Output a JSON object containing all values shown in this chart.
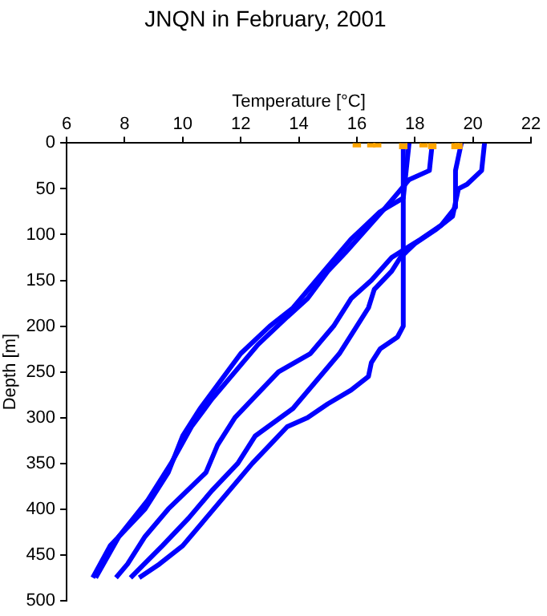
{
  "chart_data": {
    "type": "line",
    "title": "JNQN in February, 2001",
    "xlabel": "Temperature [°C]",
    "ylabel": "Depth [m]",
    "xlim": [
      6,
      22
    ],
    "xticks": [
      6,
      8,
      10,
      12,
      14,
      16,
      18,
      20,
      22
    ],
    "ylim": [
      500,
      0
    ],
    "yticks": [
      0,
      50,
      100,
      150,
      200,
      250,
      300,
      350,
      400,
      450,
      500
    ],
    "grid": false,
    "legend": false,
    "marker": "none",
    "line_style": "solid",
    "series": [
      {
        "color": "#0000ff",
        "x": [
          17.6,
          17.6,
          17.4,
          16.8,
          16.5,
          16.4,
          15.8,
          15.0,
          14.3,
          13.6,
          13.0,
          12.4,
          11.6,
          10.8,
          10.0,
          9.2,
          8.5
        ],
        "values": [
          0,
          200,
          212,
          225,
          240,
          255,
          270,
          285,
          300,
          310,
          330,
          350,
          380,
          410,
          440,
          460,
          475
        ]
      },
      {
        "color": "#0000ff",
        "x": [
          20.4,
          20.3,
          19.8,
          19.5,
          19.3,
          18.7,
          18.0,
          17.5,
          17.2,
          16.6,
          16.4,
          16.0,
          15.4,
          14.6,
          13.8,
          12.5,
          11.9,
          11.0,
          10.2,
          9.3,
          8.2
        ],
        "values": [
          0,
          30,
          45,
          50,
          80,
          95,
          110,
          125,
          140,
          160,
          180,
          200,
          230,
          260,
          290,
          320,
          350,
          380,
          410,
          440,
          475
        ]
      },
      {
        "color": "#0000ff",
        "x": [
          19.6,
          19.4,
          19.4,
          18.9,
          18.2,
          17.2,
          16.5,
          15.8,
          15.2,
          14.4,
          13.3,
          12.7,
          11.8,
          11.2,
          10.8,
          9.5,
          8.7,
          8.1,
          7.7
        ],
        "values": [
          0,
          30,
          70,
          90,
          105,
          125,
          150,
          170,
          200,
          230,
          250,
          270,
          300,
          330,
          360,
          400,
          430,
          460,
          475
        ]
      },
      {
        "color": "#0000ff",
        "x": [
          18.6,
          18.5,
          17.8,
          17.4,
          17.0,
          16.3,
          15.6,
          15.0,
          14.3,
          13.6,
          12.6,
          11.8,
          11.0,
          10.3,
          9.6,
          8.8,
          7.8,
          7.0
        ],
        "values": [
          0,
          30,
          40,
          55,
          70,
          95,
          120,
          140,
          170,
          190,
          220,
          250,
          280,
          310,
          350,
          390,
          430,
          475
        ]
      },
      {
        "color": "#0000ff",
        "x": [
          17.8,
          17.6,
          16.8,
          16.3,
          15.8,
          15.4,
          14.6,
          13.8,
          13.0,
          12.0,
          11.3,
          10.6,
          10.0,
          9.5,
          8.7,
          7.5,
          6.9
        ],
        "values": [
          0,
          60,
          75,
          90,
          105,
          120,
          150,
          180,
          200,
          230,
          260,
          290,
          320,
          360,
          400,
          440,
          475
        ]
      },
      {
        "type": "scatter",
        "marker": "square",
        "color": "#ffa500",
        "x": [
          16,
          16.5,
          16.7,
          17.6,
          18.3,
          18.6,
          19.4,
          19.5
        ],
        "values": [
          0,
          0,
          0,
          2,
          0,
          2,
          2,
          2
        ]
      }
    ]
  }
}
